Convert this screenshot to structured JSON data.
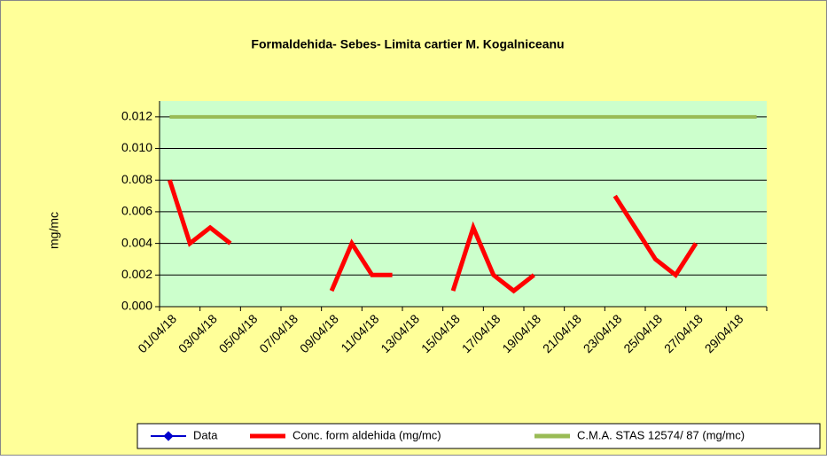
{
  "chart_data": {
    "type": "line",
    "title": "Formaldehida- Sebes- Limita cartier M. Kogalniceanu",
    "y_label": "mg/mc",
    "categories": [
      "01/04/18",
      null,
      "03/04/18",
      null,
      "05/04/18",
      null,
      "07/04/18",
      null,
      "09/04/18",
      null,
      "11/04/18",
      null,
      "13/04/18",
      null,
      "15/04/18",
      null,
      "17/04/18",
      null,
      "19/04/18",
      null,
      "21/04/18",
      null,
      "23/04/18",
      null,
      "25/04/18",
      null,
      "27/04/18",
      null,
      "29/04/18",
      null
    ],
    "series": [
      {
        "name": "Data",
        "color": "#0000cc",
        "values": [
          null,
          null,
          null,
          null,
          null,
          null,
          null,
          null,
          null,
          null,
          null,
          null,
          null,
          null,
          null,
          null,
          null,
          null,
          null,
          null,
          null,
          null,
          null,
          null,
          null,
          null,
          null,
          null,
          null,
          null
        ]
      },
      {
        "name": "Conc. form aldehida (mg/mc)",
        "color": "#ff0000",
        "values": [
          0.008,
          0.004,
          0.005,
          0.004,
          null,
          null,
          null,
          null,
          0.001,
          0.004,
          0.002,
          0.002,
          null,
          null,
          0.001,
          0.005,
          0.002,
          0.001,
          0.002,
          null,
          null,
          null,
          0.007,
          0.005,
          0.003,
          0.002,
          0.004,
          null,
          null,
          null
        ]
      },
      {
        "name": "C.M.A. STAS 12574/ 87 (mg/mc)",
        "color": "#99bb55",
        "values": [
          0.012,
          0.012,
          0.012,
          0.012,
          0.012,
          0.012,
          0.012,
          0.012,
          0.012,
          0.012,
          0.012,
          0.012,
          0.012,
          0.012,
          0.012,
          0.012,
          0.012,
          0.012,
          0.012,
          0.012,
          0.012,
          0.012,
          0.012,
          0.012,
          0.012,
          0.012,
          0.012,
          0.012,
          0.012,
          0.012
        ]
      }
    ],
    "ylim": [
      0,
      0.013
    ],
    "yticks": [
      {
        "value": 0,
        "label": "0.000"
      },
      {
        "value": 0.002,
        "label": "0.002"
      },
      {
        "value": 0.004,
        "label": "0.004"
      },
      {
        "value": 0.006,
        "label": "0.006"
      },
      {
        "value": 0.008,
        "label": "0.008"
      },
      {
        "value": 0.01,
        "label": "0.010"
      },
      {
        "value": 0.012,
        "label": "0.012"
      }
    ],
    "grid": true,
    "legend": "bottom"
  }
}
